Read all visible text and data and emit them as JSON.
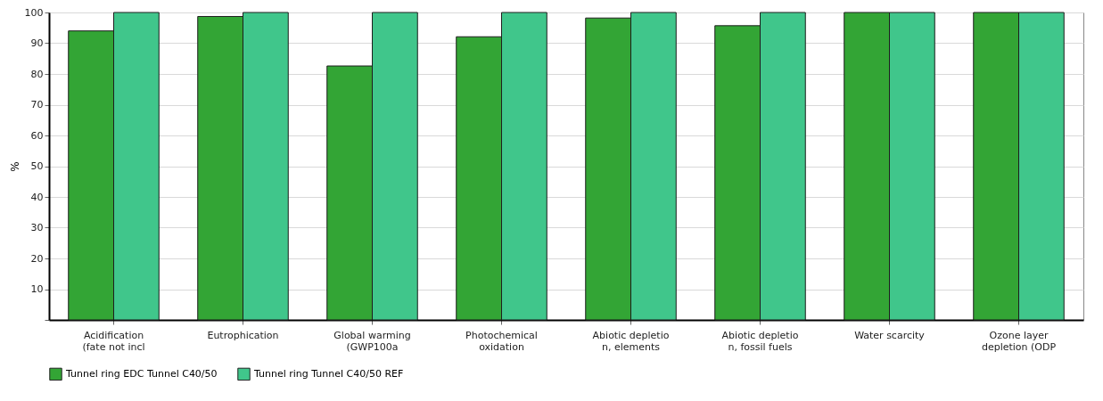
{
  "chart_data": {
    "type": "bar",
    "ylabel": "%",
    "categories": [
      "Acidification\n(fate not incl",
      "Eutrophication",
      "Global warming\n(GWP100a",
      "Photochemical\noxidation",
      "Abiotic depletio\nn, elements",
      "Abiotic depletio\nn, fossil fuels",
      "Water scarcity",
      "Ozone layer\ndepletion (ODP"
    ],
    "series": [
      {
        "name": "Tunnel ring EDC Tunnel C40/50",
        "color": "#33a535",
        "values": [
          94.0,
          98.7,
          82.6,
          92.1,
          98.2,
          95.7,
          100,
          100
        ]
      },
      {
        "name": "Tunnel ring Tunnel C40/50 REF",
        "color": "#40c68b",
        "values": [
          100,
          100,
          100,
          100,
          100,
          100,
          100,
          100
        ]
      }
    ],
    "ylim": [
      0,
      100
    ],
    "yticks": [
      {
        "value": 0,
        "label": null
      },
      10,
      20,
      30,
      40,
      50,
      60,
      70,
      80,
      90,
      100
    ],
    "grid": "y",
    "legend": "bottom"
  }
}
